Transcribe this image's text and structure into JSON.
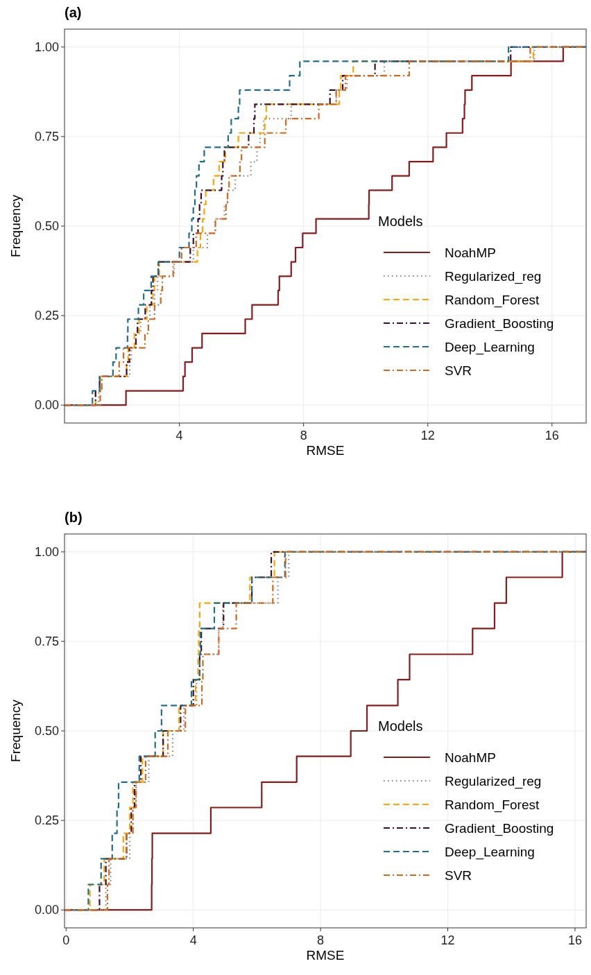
{
  "chart_data": [
    {
      "type": "step",
      "title": "(a)",
      "xlabel": "RMSE",
      "ylabel": "Frequency",
      "legend_title": "Models",
      "legend": "bottom right",
      "grid": true,
      "xlim": [
        0.3,
        17.1
      ],
      "ylim": [
        -0.05,
        1.05
      ],
      "xticks": [
        4,
        8,
        12,
        16
      ],
      "yticks": [
        {
          "value": 0,
          "label": "0.00"
        },
        {
          "value": 0.25,
          "label": "0.25"
        },
        {
          "value": 0.5,
          "label": "0.50"
        },
        {
          "value": 0.75,
          "label": "0.75"
        },
        {
          "value": 1,
          "label": "1.00"
        }
      ],
      "series": [
        {
          "name": "NoahMP",
          "color": "#8b1a1a",
          "line_style": "solid",
          "x": [
            0.3,
            2.28,
            4.12,
            4.18,
            4.41,
            4.73,
            6.12,
            6.34,
            7.18,
            7.22,
            7.6,
            7.74,
            7.97,
            8.4,
            10.1,
            10.11,
            10.85,
            11.4,
            12.17,
            12.6,
            13.12,
            13.18,
            13.2,
            13.42,
            14.68,
            16.36,
            17.1
          ],
          "values": [
            0,
            0.04,
            0.08,
            0.12,
            0.16,
            0.2,
            0.24,
            0.28,
            0.32,
            0.36,
            0.4,
            0.44,
            0.48,
            0.52,
            0.56,
            0.6,
            0.64,
            0.68,
            0.72,
            0.76,
            0.8,
            0.84,
            0.88,
            0.92,
            0.96,
            1,
            1
          ]
        },
        {
          "name": "Regularized_reg",
          "color": "#808080",
          "line_style": "dotted",
          "x": [
            0.3,
            1.4,
            1.5,
            2.4,
            2.45,
            2.6,
            2.75,
            3.05,
            3.2,
            3.3,
            3.83,
            4.45,
            4.9,
            5.15,
            5.45,
            5.55,
            5.8,
            6.3,
            6.5,
            6.6,
            6.72,
            7.6,
            9.05,
            9.4,
            10.6,
            15.43,
            17.1
          ],
          "values": [
            0,
            0.04,
            0.08,
            0.12,
            0.16,
            0.2,
            0.24,
            0.28,
            0.32,
            0.36,
            0.4,
            0.44,
            0.48,
            0.52,
            0.56,
            0.6,
            0.64,
            0.68,
            0.72,
            0.76,
            0.8,
            0.84,
            0.88,
            0.92,
            0.96,
            1,
            1
          ]
        },
        {
          "name": "Random_Forest",
          "color": "#ffa500",
          "line_style": "dashed",
          "x": [
            0.3,
            1.3,
            1.45,
            2.3,
            2.35,
            2.55,
            2.7,
            2.95,
            3.15,
            3.2,
            3.35,
            4.58,
            4.68,
            4.75,
            4.8,
            4.85,
            5.1,
            5.28,
            5.48,
            5.9,
            6.75,
            6.8,
            9.15,
            9.2,
            9.6,
            15.4,
            17.1
          ],
          "values": [
            0,
            0.04,
            0.08,
            0.12,
            0.16,
            0.2,
            0.24,
            0.28,
            0.32,
            0.36,
            0.4,
            0.44,
            0.48,
            0.52,
            0.56,
            0.6,
            0.64,
            0.68,
            0.72,
            0.76,
            0.8,
            0.84,
            0.88,
            0.92,
            0.96,
            1,
            1
          ]
        },
        {
          "name": "Gradient_Boosting",
          "color": "#3b0f2f",
          "line_style": "dashdot",
          "x": [
            0.3,
            1.3,
            1.43,
            2.3,
            2.39,
            2.6,
            2.65,
            2.9,
            3.1,
            3.15,
            3.32,
            4.35,
            4.45,
            4.6,
            4.65,
            4.7,
            5.36,
            5.4,
            5.45,
            6.23,
            6.4,
            6.43,
            8.85,
            9.26,
            10.3,
            14.67,
            17.1
          ],
          "values": [
            0,
            0.04,
            0.08,
            0.12,
            0.16,
            0.2,
            0.24,
            0.28,
            0.32,
            0.36,
            0.4,
            0.44,
            0.48,
            0.52,
            0.56,
            0.6,
            0.64,
            0.68,
            0.72,
            0.76,
            0.8,
            0.84,
            0.88,
            0.92,
            0.96,
            1,
            1
          ]
        },
        {
          "name": "Deep_Learning",
          "color": "#1f6e8c",
          "line_style": "dashed",
          "x": [
            0.3,
            1.2,
            1.43,
            1.86,
            1.96,
            2.33,
            2.34,
            2.68,
            2.85,
            3.09,
            3.32,
            4.0,
            4.31,
            4.4,
            4.45,
            4.5,
            4.55,
            4.63,
            4.8,
            5.57,
            5.67,
            5.9,
            5.94,
            7.55,
            7.88,
            14.6,
            17.1
          ],
          "values": [
            0,
            0.04,
            0.08,
            0.12,
            0.16,
            0.2,
            0.24,
            0.28,
            0.32,
            0.36,
            0.4,
            0.44,
            0.48,
            0.52,
            0.56,
            0.6,
            0.64,
            0.68,
            0.72,
            0.76,
            0.8,
            0.84,
            0.88,
            0.92,
            0.96,
            1,
            1
          ]
        },
        {
          "name": "SVR",
          "color": "#d2691e",
          "line_style": "dashdot",
          "x": [
            0.3,
            1.45,
            1.5,
            2.06,
            2.2,
            2.89,
            3.0,
            3.2,
            3.4,
            3.45,
            3.8,
            4.07,
            4.54,
            5.16,
            5.5,
            5.55,
            5.6,
            5.95,
            6.0,
            6.75,
            7.43,
            8.49,
            9.05,
            9.35,
            11.4,
            15.3,
            17.1
          ],
          "values": [
            0,
            0.04,
            0.08,
            0.12,
            0.16,
            0.2,
            0.24,
            0.28,
            0.32,
            0.36,
            0.4,
            0.44,
            0.48,
            0.52,
            0.56,
            0.6,
            0.64,
            0.68,
            0.72,
            0.76,
            0.8,
            0.84,
            0.88,
            0.92,
            0.96,
            1,
            1
          ]
        }
      ]
    },
    {
      "type": "step",
      "title": "(b)",
      "xlabel": "RMSE",
      "ylabel": "Frequency",
      "legend_title": "Models",
      "legend": "bottom right",
      "grid": true,
      "xlim": [
        -0.05,
        16.35
      ],
      "ylim": [
        -0.05,
        1.05
      ],
      "xticks": [
        0,
        4,
        8,
        12,
        16
      ],
      "yticks": [
        {
          "value": 0,
          "label": "0.00"
        },
        {
          "value": 0.25,
          "label": "0.25"
        },
        {
          "value": 0.5,
          "label": "0.50"
        },
        {
          "value": 0.75,
          "label": "0.75"
        },
        {
          "value": 1,
          "label": "1.00"
        }
      ],
      "series": [
        {
          "name": "NoahMP",
          "color": "#8b1a1a",
          "line_style": "solid",
          "x": [
            -0.05,
            2.69,
            2.7,
            2.71,
            4.55,
            6.15,
            7.25,
            8.95,
            9.46,
            10.43,
            10.8,
            12.78,
            13.47,
            13.84,
            15.6,
            16.35
          ],
          "values": [
            0,
            0.071,
            0.143,
            0.214,
            0.286,
            0.357,
            0.429,
            0.5,
            0.571,
            0.643,
            0.714,
            0.786,
            0.857,
            0.929,
            1,
            1
          ]
        },
        {
          "name": "Regularized_reg",
          "color": "#808080",
          "line_style": "dotted",
          "x": [
            -0.05,
            1.25,
            1.4,
            2.0,
            2.1,
            2.2,
            2.6,
            3.35,
            3.7,
            4.1,
            4.2,
            4.8,
            4.93,
            6.66,
            7.0,
            16.35
          ],
          "values": [
            0,
            0.071,
            0.143,
            0.214,
            0.286,
            0.357,
            0.429,
            0.5,
            0.571,
            0.643,
            0.714,
            0.786,
            0.857,
            0.929,
            1,
            1
          ]
        },
        {
          "name": "Random_Forest",
          "color": "#ffa500",
          "line_style": "dashed",
          "x": [
            -0.05,
            0.75,
            1.2,
            1.8,
            2.0,
            2.1,
            2.4,
            3.05,
            3.55,
            4.07,
            4.15,
            4.17,
            4.2,
            5.78,
            6.55,
            16.35
          ],
          "values": [
            0,
            0.071,
            0.143,
            0.214,
            0.286,
            0.357,
            0.429,
            0.5,
            0.571,
            0.643,
            0.714,
            0.786,
            0.857,
            0.929,
            1,
            1
          ]
        },
        {
          "name": "Gradient_Boosting",
          "color": "#3b0f2f",
          "line_style": "dashdot",
          "x": [
            -0.05,
            1.05,
            1.25,
            1.9,
            2.05,
            2.15,
            2.35,
            3.05,
            3.6,
            4.0,
            4.2,
            4.25,
            4.95,
            5.84,
            6.45,
            16.35
          ],
          "values": [
            0,
            0.071,
            0.143,
            0.214,
            0.286,
            0.357,
            0.429,
            0.5,
            0.571,
            0.643,
            0.714,
            0.786,
            0.857,
            0.929,
            1,
            1
          ]
        },
        {
          "name": "Deep_Learning",
          "color": "#1f6e8c",
          "line_style": "dashed",
          "x": [
            -0.05,
            0.7,
            1.1,
            1.45,
            1.6,
            1.65,
            2.3,
            2.8,
            3.0,
            3.94,
            4.2,
            4.22,
            4.66,
            5.84,
            6.88,
            16.35
          ],
          "values": [
            0,
            0.071,
            0.143,
            0.214,
            0.286,
            0.357,
            0.429,
            0.5,
            0.571,
            0.643,
            0.714,
            0.786,
            0.857,
            0.929,
            1,
            1
          ]
        },
        {
          "name": "SVR",
          "color": "#d2691e",
          "line_style": "dashdot",
          "x": [
            -0.05,
            1.3,
            1.35,
            1.9,
            2.1,
            2.2,
            2.5,
            3.2,
            3.75,
            4.27,
            4.3,
            4.8,
            5.35,
            6.5,
            6.9,
            16.35
          ],
          "values": [
            0,
            0.071,
            0.143,
            0.214,
            0.286,
            0.357,
            0.429,
            0.5,
            0.571,
            0.643,
            0.714,
            0.786,
            0.857,
            0.929,
            1,
            1
          ]
        }
      ]
    }
  ]
}
